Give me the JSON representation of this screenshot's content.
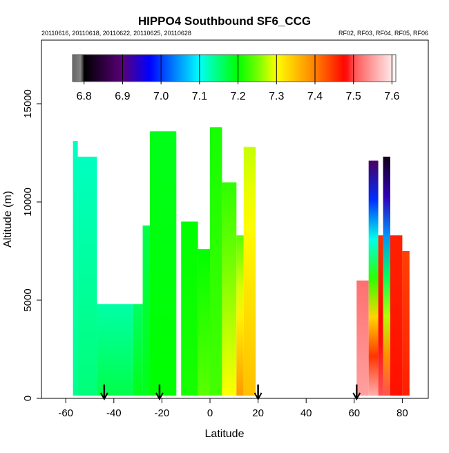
{
  "chart_data": {
    "type": "heatmap",
    "title": "HIPPO4 Southbound SF6_CCG",
    "subtitle_left": "20110616, 20110618, 20110622, 20110625, 20110628",
    "subtitle_right": "RF02, RF03, RF04, RF05, RF06",
    "xlabel": "Latitude",
    "ylabel": "Altitude (m)",
    "xlim": [
      -70,
      90
    ],
    "ylim": [
      0,
      18200
    ],
    "xticks": [
      -60,
      -40,
      -20,
      0,
      20,
      40,
      60,
      80
    ],
    "xtick_labels": [
      "-60",
      "-40",
      "-20",
      "0",
      "20",
      "40",
      "60",
      "80"
    ],
    "yticks": [
      0,
      5000,
      10000,
      15000
    ],
    "ytick_labels": [
      "0",
      "5000",
      "10000",
      "15000"
    ],
    "colorbar": {
      "range": [
        6.77,
        7.61
      ],
      "ticks": [
        6.8,
        6.9,
        7.0,
        7.1,
        7.2,
        7.3,
        7.4,
        7.5,
        7.6
      ],
      "tick_labels": [
        "6.8",
        "6.9",
        "7.0",
        "7.1",
        "7.2",
        "7.3",
        "7.4",
        "7.5",
        "7.6"
      ]
    },
    "profiles": [
      {
        "lat": [
          -57,
          -55
        ],
        "top": 13100,
        "v_bottom": 7.14,
        "v_top": 7.12
      },
      {
        "lat": [
          -55,
          -47
        ],
        "top": 12300,
        "v_bottom": 7.15,
        "v_top": 7.12
      },
      {
        "lat": [
          -47,
          -32
        ],
        "top": 4800,
        "v_bottom": 7.17,
        "v_top": 7.13
      },
      {
        "lat": [
          -32,
          -28
        ],
        "top": 4800,
        "v_bottom": 7.19,
        "v_top": 7.16
      },
      {
        "lat": [
          -28,
          -25
        ],
        "top": 8800,
        "v_bottom": 7.19,
        "v_top": 7.17
      },
      {
        "lat": [
          -25,
          -14
        ],
        "top": 13600,
        "v_bottom": 7.2,
        "v_top": 7.19
      },
      {
        "lat": [
          -12,
          -5
        ],
        "top": 9000,
        "v_bottom": 7.21,
        "v_top": 7.2
      },
      {
        "lat": [
          -5,
          0
        ],
        "top": 7600,
        "v_bottom": 7.24,
        "v_top": 7.2
      },
      {
        "lat": [
          0,
          5
        ],
        "top": 13800,
        "v_bottom": 7.23,
        "v_top": 7.21
      },
      {
        "lat": [
          5,
          11
        ],
        "top": 11000,
        "v_bottom": 7.3,
        "v_top": 7.22
      },
      {
        "lat": [
          11,
          14
        ],
        "top": 8300,
        "v_bottom": 7.38,
        "v_top": 7.24
      },
      {
        "lat": [
          14,
          19
        ],
        "top": 12800,
        "v_bottom": 7.35,
        "v_top": 7.28
      },
      {
        "lat": [
          61,
          66
        ],
        "top": 6000,
        "v_bottom": 7.55,
        "v_top": 7.52
      },
      {
        "lat": [
          66,
          70
        ],
        "top": 12100,
        "v_bottom": 7.56,
        "v_top": 6.88
      },
      {
        "lat": [
          70,
          72
        ],
        "top": 8300,
        "v_bottom": 7.5,
        "v_top": 7.45
      },
      {
        "lat": [
          72,
          75
        ],
        "top": 12300,
        "v_bottom": 7.5,
        "v_top": 6.82
      },
      {
        "lat": [
          75,
          80
        ],
        "top": 8300,
        "v_bottom": 7.47,
        "v_top": 7.46
      },
      {
        "lat": [
          80,
          83
        ],
        "top": 7500,
        "v_bottom": 7.46,
        "v_top": 7.44
      }
    ],
    "arrows_lat": [
      -44,
      -21,
      20,
      61
    ]
  }
}
